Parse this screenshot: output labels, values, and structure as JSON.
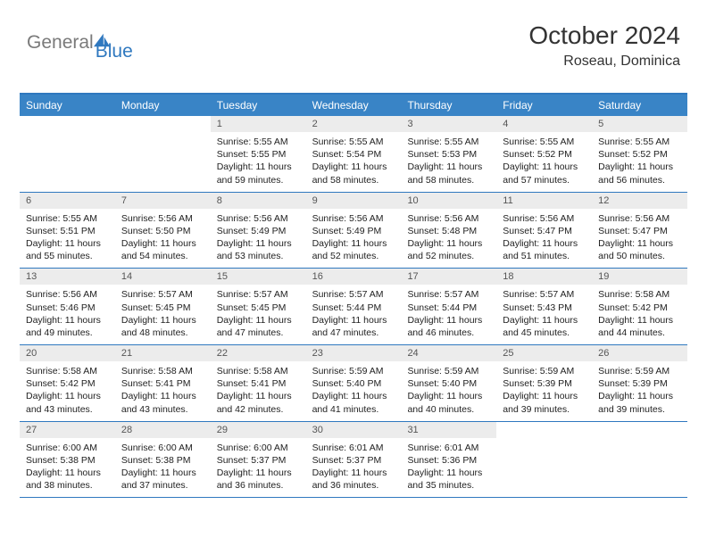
{
  "brand": {
    "general": "General",
    "blue": "Blue"
  },
  "title": "October 2024",
  "location": "Roseau, Dominica",
  "colors": {
    "header_bg": "#3984c6",
    "header_text": "#ffffff",
    "border": "#2f78bf",
    "daynum_bg": "#ececec",
    "page_bg": "#ffffff",
    "logo_gray": "#7a7a7a",
    "logo_blue": "#2f78bf"
  },
  "day_headers": [
    "Sunday",
    "Monday",
    "Tuesday",
    "Wednesday",
    "Thursday",
    "Friday",
    "Saturday"
  ],
  "weeks": [
    [
      null,
      null,
      {
        "n": "1",
        "sunrise": "5:55 AM",
        "sunset": "5:55 PM",
        "daylight": "11 hours and 59 minutes."
      },
      {
        "n": "2",
        "sunrise": "5:55 AM",
        "sunset": "5:54 PM",
        "daylight": "11 hours and 58 minutes."
      },
      {
        "n": "3",
        "sunrise": "5:55 AM",
        "sunset": "5:53 PM",
        "daylight": "11 hours and 58 minutes."
      },
      {
        "n": "4",
        "sunrise": "5:55 AM",
        "sunset": "5:52 PM",
        "daylight": "11 hours and 57 minutes."
      },
      {
        "n": "5",
        "sunrise": "5:55 AM",
        "sunset": "5:52 PM",
        "daylight": "11 hours and 56 minutes."
      }
    ],
    [
      {
        "n": "6",
        "sunrise": "5:55 AM",
        "sunset": "5:51 PM",
        "daylight": "11 hours and 55 minutes."
      },
      {
        "n": "7",
        "sunrise": "5:56 AM",
        "sunset": "5:50 PM",
        "daylight": "11 hours and 54 minutes."
      },
      {
        "n": "8",
        "sunrise": "5:56 AM",
        "sunset": "5:49 PM",
        "daylight": "11 hours and 53 minutes."
      },
      {
        "n": "9",
        "sunrise": "5:56 AM",
        "sunset": "5:49 PM",
        "daylight": "11 hours and 52 minutes."
      },
      {
        "n": "10",
        "sunrise": "5:56 AM",
        "sunset": "5:48 PM",
        "daylight": "11 hours and 52 minutes."
      },
      {
        "n": "11",
        "sunrise": "5:56 AM",
        "sunset": "5:47 PM",
        "daylight": "11 hours and 51 minutes."
      },
      {
        "n": "12",
        "sunrise": "5:56 AM",
        "sunset": "5:47 PM",
        "daylight": "11 hours and 50 minutes."
      }
    ],
    [
      {
        "n": "13",
        "sunrise": "5:56 AM",
        "sunset": "5:46 PM",
        "daylight": "11 hours and 49 minutes."
      },
      {
        "n": "14",
        "sunrise": "5:57 AM",
        "sunset": "5:45 PM",
        "daylight": "11 hours and 48 minutes."
      },
      {
        "n": "15",
        "sunrise": "5:57 AM",
        "sunset": "5:45 PM",
        "daylight": "11 hours and 47 minutes."
      },
      {
        "n": "16",
        "sunrise": "5:57 AM",
        "sunset": "5:44 PM",
        "daylight": "11 hours and 47 minutes."
      },
      {
        "n": "17",
        "sunrise": "5:57 AM",
        "sunset": "5:44 PM",
        "daylight": "11 hours and 46 minutes."
      },
      {
        "n": "18",
        "sunrise": "5:57 AM",
        "sunset": "5:43 PM",
        "daylight": "11 hours and 45 minutes."
      },
      {
        "n": "19",
        "sunrise": "5:58 AM",
        "sunset": "5:42 PM",
        "daylight": "11 hours and 44 minutes."
      }
    ],
    [
      {
        "n": "20",
        "sunrise": "5:58 AM",
        "sunset": "5:42 PM",
        "daylight": "11 hours and 43 minutes."
      },
      {
        "n": "21",
        "sunrise": "5:58 AM",
        "sunset": "5:41 PM",
        "daylight": "11 hours and 43 minutes."
      },
      {
        "n": "22",
        "sunrise": "5:58 AM",
        "sunset": "5:41 PM",
        "daylight": "11 hours and 42 minutes."
      },
      {
        "n": "23",
        "sunrise": "5:59 AM",
        "sunset": "5:40 PM",
        "daylight": "11 hours and 41 minutes."
      },
      {
        "n": "24",
        "sunrise": "5:59 AM",
        "sunset": "5:40 PM",
        "daylight": "11 hours and 40 minutes."
      },
      {
        "n": "25",
        "sunrise": "5:59 AM",
        "sunset": "5:39 PM",
        "daylight": "11 hours and 39 minutes."
      },
      {
        "n": "26",
        "sunrise": "5:59 AM",
        "sunset": "5:39 PM",
        "daylight": "11 hours and 39 minutes."
      }
    ],
    [
      {
        "n": "27",
        "sunrise": "6:00 AM",
        "sunset": "5:38 PM",
        "daylight": "11 hours and 38 minutes."
      },
      {
        "n": "28",
        "sunrise": "6:00 AM",
        "sunset": "5:38 PM",
        "daylight": "11 hours and 37 minutes."
      },
      {
        "n": "29",
        "sunrise": "6:00 AM",
        "sunset": "5:37 PM",
        "daylight": "11 hours and 36 minutes."
      },
      {
        "n": "30",
        "sunrise": "6:01 AM",
        "sunset": "5:37 PM",
        "daylight": "11 hours and 36 minutes."
      },
      {
        "n": "31",
        "sunrise": "6:01 AM",
        "sunset": "5:36 PM",
        "daylight": "11 hours and 35 minutes."
      },
      null,
      null
    ]
  ],
  "labels": {
    "sunrise_prefix": "Sunrise: ",
    "sunset_prefix": "Sunset: ",
    "daylight_prefix": "Daylight: "
  }
}
